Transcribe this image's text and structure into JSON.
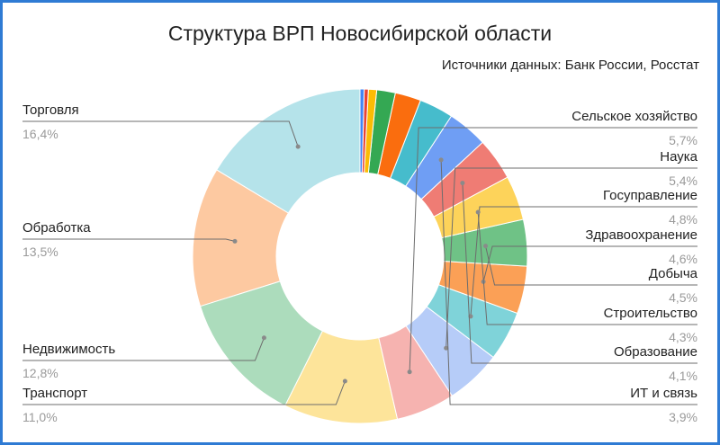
{
  "chart_data": {
    "type": "pie",
    "donut": true,
    "title": "Структура ВРП Новосибирской области",
    "subtitle": "Источники данных: Банк России, Росстат",
    "legend": "none",
    "slices": [
      {
        "name": "Торговля",
        "value": 16.4,
        "value_label": "16,4%",
        "color": "#b5e3ea",
        "labeled": true
      },
      {
        "name": "Обработка",
        "value": 13.5,
        "value_label": "13,5%",
        "color": "#fdc9a1",
        "labeled": true
      },
      {
        "name": "Недвижимость",
        "value": 12.8,
        "value_label": "12,8%",
        "color": "#acdcbc",
        "labeled": true
      },
      {
        "name": "Транспорт",
        "value": 11.0,
        "value_label": "11,0%",
        "color": "#fde49a",
        "labeled": true
      },
      {
        "name": "Сельское хозяйство",
        "value": 5.7,
        "value_label": "5,7%",
        "color": "#f6b3b0",
        "labeled": true
      },
      {
        "name": "Наука",
        "value": 5.4,
        "value_label": "5,4%",
        "color": "#b6ccf8",
        "labeled": true
      },
      {
        "name": "Госуправление",
        "value": 4.8,
        "value_label": "4,8%",
        "color": "#7fd3d9",
        "labeled": true
      },
      {
        "name": "Здравоохранение",
        "value": 4.6,
        "value_label": "4,6%",
        "color": "#fba056",
        "labeled": true
      },
      {
        "name": "Добыча",
        "value": 4.5,
        "value_label": "4,5%",
        "color": "#6fc286",
        "labeled": true
      },
      {
        "name": "Строительство",
        "value": 4.3,
        "value_label": "4,3%",
        "color": "#fdd35a",
        "labeled": true
      },
      {
        "name": "Образование",
        "value": 4.1,
        "value_label": "4,1%",
        "color": "#ef7c74",
        "labeled": true
      },
      {
        "name": "ИТ и связь",
        "value": 3.9,
        "value_label": "3,9%",
        "color": "#6f9ef4",
        "labeled": true
      },
      {
        "name": "",
        "value": 3.3,
        "color": "#46bccc",
        "labeled": false
      },
      {
        "name": "",
        "value": 2.5,
        "color": "#fa6d0e",
        "labeled": false
      },
      {
        "name": "",
        "value": 1.8,
        "color": "#34a853",
        "labeled": false
      },
      {
        "name": "",
        "value": 0.8,
        "color": "#fbbc04",
        "labeled": false
      },
      {
        "name": "",
        "value": 0.4,
        "color": "#e94335",
        "labeled": false
      },
      {
        "name": "",
        "value": 0.4,
        "color": "#4285f4",
        "labeled": false
      }
    ]
  }
}
